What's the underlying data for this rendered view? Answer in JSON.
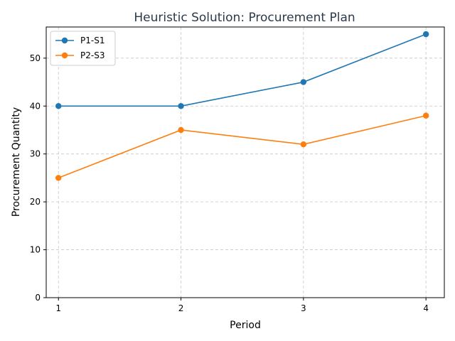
{
  "chart_data": {
    "type": "line",
    "title": "Heuristic Solution: Procurement Plan",
    "xlabel": "Period",
    "ylabel": "Procurement Quantity",
    "x": [
      1,
      2,
      3,
      4
    ],
    "xticks": [
      "1",
      "2",
      "3",
      "4"
    ],
    "yticks": [
      "0",
      "10",
      "20",
      "30",
      "40",
      "50"
    ],
    "xlim": [
      0.9,
      4.15
    ],
    "ylim": [
      0,
      56.5
    ],
    "grid": true,
    "legend_position": "top-left",
    "series": [
      {
        "name": "P1-S1",
        "color": "#1f77b4",
        "values": [
          40,
          40,
          45,
          55
        ]
      },
      {
        "name": "P2-S3",
        "color": "#ff7f0e",
        "values": [
          25,
          35,
          32,
          38
        ]
      }
    ]
  }
}
